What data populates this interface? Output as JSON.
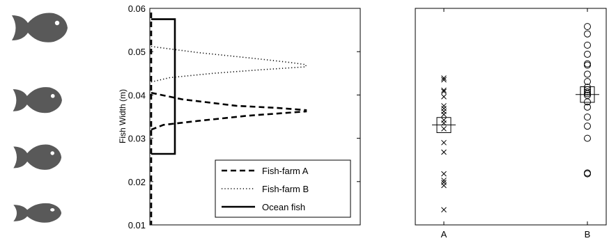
{
  "fish_icons": {
    "color": "#595959",
    "icons": [
      {
        "name": "fish-icon-large"
      },
      {
        "name": "fish-icon-medium-1"
      },
      {
        "name": "fish-icon-medium-2"
      },
      {
        "name": "fish-icon-small"
      }
    ]
  },
  "chart_data": [
    {
      "type": "line",
      "ylabel": "Fish Width (m)",
      "xlabel": "",
      "ylim": [
        0.01,
        0.06
      ],
      "yticks": [
        0.01,
        0.02,
        0.03,
        0.04,
        0.05,
        0.06
      ],
      "ytick_labels": [
        "0.01",
        "0.02",
        "0.03",
        "0.04",
        "0.05",
        "0.06"
      ],
      "legend": {
        "location": "lower-right",
        "entries": [
          "Fish-farm A",
          "Fish-farm B",
          "Ocean fish"
        ]
      },
      "series": [
        {
          "name": "Fish-farm A",
          "style": "dashed",
          "y": [
            0.0405,
            0.039,
            0.0375,
            0.037,
            0.0365,
            0.0362,
            0.0352,
            0.034,
            0.0331,
            0.032
          ],
          "density": [
            0.0,
            0.2,
            0.55,
            0.82,
            1.0,
            1.0,
            0.62,
            0.3,
            0.08,
            0.0
          ]
        },
        {
          "name": "Fish-farm B",
          "style": "dotted",
          "y": [
            0.0512,
            0.0498,
            0.0485,
            0.0475,
            0.047,
            0.0465,
            0.0458,
            0.045,
            0.044,
            0.043
          ],
          "density": [
            0.0,
            0.3,
            0.65,
            0.9,
            1.0,
            1.0,
            0.7,
            0.4,
            0.12,
            0.0
          ]
        },
        {
          "name": "Ocean fish",
          "style": "solid",
          "shape": "box",
          "ymin": 0.0264,
          "ymax": 0.0575
        }
      ]
    },
    {
      "type": "scatter",
      "categories": [
        "A",
        "B"
      ],
      "ylim": [
        0.01,
        0.06
      ],
      "series": [
        {
          "name": "A",
          "marker": "x",
          "values": [
            0.0439,
            0.0435,
            0.0411,
            0.0408,
            0.0396,
            0.0375,
            0.0369,
            0.0362,
            0.0355,
            0.0342,
            0.0335,
            0.0322,
            0.029,
            0.0268,
            0.0218,
            0.0203,
            0.0198,
            0.0191,
            0.0135
          ],
          "mean": 0.0331,
          "box": [
            0.0313,
            0.0348
          ]
        },
        {
          "name": "B",
          "marker": "circle",
          "values": [
            0.0558,
            0.0541,
            0.0515,
            0.0494,
            0.0472,
            0.0469,
            0.0448,
            0.0431,
            0.0418,
            0.0412,
            0.0407,
            0.0403,
            0.0399,
            0.0384,
            0.0372,
            0.0349,
            0.0328,
            0.03,
            0.022,
            0.0218
          ],
          "mean": 0.0401,
          "box": [
            0.0383,
            0.0419
          ]
        }
      ]
    }
  ]
}
